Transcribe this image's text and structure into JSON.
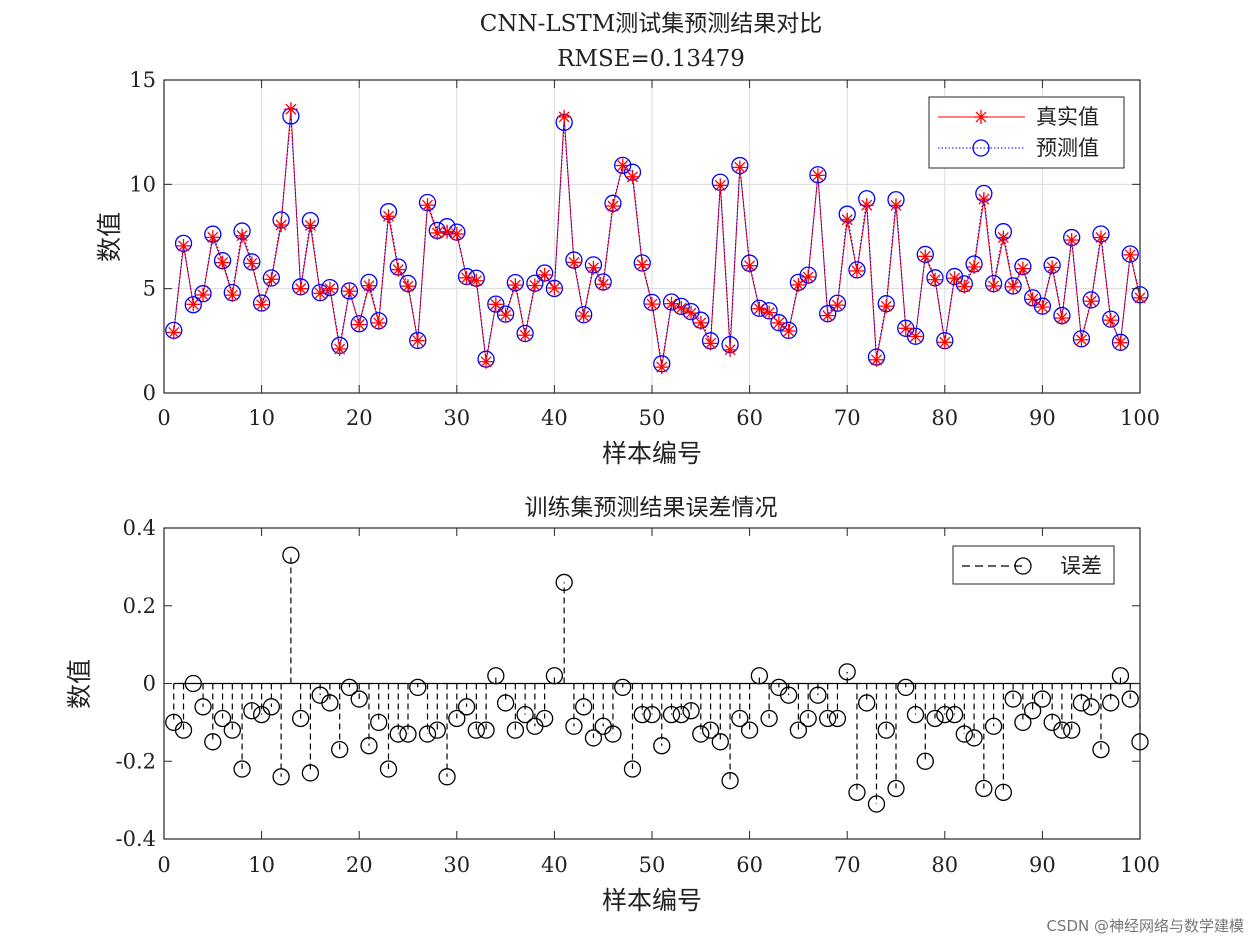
{
  "watermark": "CSDN @神经网络与数学建模",
  "chart_data": [
    {
      "type": "line",
      "title": "CNN-LSTM测试集预测结果对比",
      "subtitle": "RMSE=0.13479",
      "xlabel": "样本编号",
      "ylabel": "数值",
      "xlim": [
        0,
        100
      ],
      "ylim": [
        0,
        15
      ],
      "xticks": [
        0,
        10,
        20,
        30,
        40,
        50,
        60,
        70,
        80,
        90,
        100
      ],
      "yticks": [
        0,
        5,
        10,
        15
      ],
      "grid": true,
      "legend_position": "top-right",
      "series": [
        {
          "name": "真实值",
          "color": "#ff0000",
          "marker": "asterisk",
          "values": [
            2.9,
            7.05,
            4.25,
            4.7,
            7.46,
            6.25,
            4.69,
            7.54,
            6.21,
            4.23,
            5.45,
            8.05,
            13.6,
            5.0,
            8.03,
            4.78,
            5.0,
            2.11,
            4.88,
            3.28,
            5.14,
            3.36,
            8.47,
            5.91,
            5.12,
            2.51,
            9.0,
            7.67,
            7.73,
            7.62,
            5.52,
            5.38,
            1.5,
            4.25,
            3.73,
            5.17,
            2.77,
            5.15,
            5.66,
            5.03,
            13.23,
            6.26,
            3.69,
            6.0,
            5.21,
            8.96,
            10.9,
            10.36,
            6.15,
            4.26,
            1.24,
            4.28,
            4.07,
            3.83,
            3.36,
            2.38,
            9.95,
            2.07,
            10.81,
            6.1,
            4.04,
            3.85,
            3.36,
            2.97,
            5.18,
            5.56,
            10.43,
            3.71,
            4.21,
            8.3,
            5.85,
            9.0,
            1.59,
            4.16,
            8.99,
            3.1,
            2.71,
            6.55,
            5.43,
            2.43,
            5.5,
            5.1,
            6.04,
            9.29,
            5.13,
            7.45,
            5.09,
            5.96,
            4.49,
            4.12,
            6.02,
            3.59,
            7.33,
            2.55,
            4.4,
            7.45,
            3.49,
            2.41,
            6.62,
            4.56
          ]
        },
        {
          "name": "预测值",
          "color": "#0000ff",
          "marker": "circle",
          "values": [
            3.0,
            7.17,
            4.23,
            4.76,
            7.61,
            6.34,
            4.81,
            7.76,
            6.28,
            4.31,
            5.51,
            8.29,
            13.27,
            5.09,
            8.26,
            4.81,
            5.05,
            2.28,
            4.89,
            3.32,
            5.3,
            3.46,
            8.69,
            6.04,
            5.25,
            2.52,
            9.13,
            7.79,
            7.97,
            7.71,
            5.58,
            5.5,
            1.62,
            4.26,
            3.78,
            5.29,
            2.85,
            5.26,
            5.75,
            5.01,
            12.97,
            6.37,
            3.75,
            6.14,
            5.32,
            9.09,
            10.91,
            10.58,
            6.23,
            4.34,
            1.4,
            4.36,
            4.15,
            3.9,
            3.49,
            2.5,
            10.1,
            2.32,
            10.9,
            6.22,
            4.06,
            3.94,
            3.37,
            3.0,
            5.3,
            5.65,
            10.46,
            3.8,
            4.3,
            8.57,
            5.9,
            9.31,
            1.72,
            4.28,
            9.26,
            3.1,
            2.72,
            6.64,
            5.52,
            2.51,
            5.58,
            5.23,
            6.18,
            9.56,
            5.24,
            7.73,
            5.13,
            6.06,
            4.56,
            4.16,
            6.12,
            3.71,
            7.45,
            2.6,
            4.46,
            7.62,
            3.54,
            2.43,
            6.66,
            4.71
          ]
        }
      ]
    },
    {
      "type": "stem",
      "title": "训练集预测结果误差情况",
      "xlabel": "样本编号",
      "ylabel": "数值",
      "xlim": [
        0,
        100
      ],
      "ylim": [
        -0.4,
        0.4
      ],
      "xticks": [
        0,
        10,
        20,
        30,
        40,
        50,
        60,
        70,
        80,
        90,
        100
      ],
      "yticks": [
        -0.4,
        -0.2,
        0,
        0.2,
        0.4
      ],
      "yticklabels": [
        "-0.4",
        "-0.2",
        "0",
        "0.2",
        "0.4"
      ],
      "grid": false,
      "legend_position": "top-right",
      "series": [
        {
          "name": "误差",
          "color": "#000000",
          "marker": "circle",
          "values": [
            -0.1,
            -0.12,
            0.0,
            -0.06,
            -0.15,
            -0.09,
            -0.12,
            -0.22,
            -0.07,
            -0.08,
            -0.06,
            -0.24,
            0.33,
            -0.09,
            -0.23,
            -0.03,
            -0.05,
            -0.17,
            -0.01,
            -0.04,
            -0.16,
            -0.1,
            -0.22,
            -0.13,
            -0.13,
            -0.01,
            -0.13,
            -0.12,
            -0.24,
            -0.09,
            -0.06,
            -0.12,
            -0.12,
            0.02,
            -0.05,
            -0.12,
            -0.08,
            -0.11,
            -0.09,
            0.02,
            0.26,
            -0.11,
            -0.06,
            -0.14,
            -0.11,
            -0.13,
            -0.01,
            -0.22,
            -0.08,
            -0.08,
            -0.16,
            -0.08,
            -0.08,
            -0.07,
            -0.13,
            -0.12,
            -0.15,
            -0.25,
            -0.09,
            -0.12,
            0.02,
            -0.09,
            -0.01,
            -0.03,
            -0.12,
            -0.09,
            -0.03,
            -0.09,
            -0.09,
            0.03,
            -0.28,
            -0.05,
            -0.31,
            -0.12,
            -0.27,
            -0.01,
            -0.08,
            -0.2,
            -0.09,
            -0.08,
            -0.08,
            -0.13,
            -0.14,
            -0.27,
            -0.11,
            -0.28,
            -0.04,
            -0.1,
            -0.07,
            -0.04,
            -0.1,
            -0.12,
            -0.12,
            -0.05,
            -0.06,
            -0.17,
            -0.05,
            0.02,
            -0.04,
            -0.15
          ]
        }
      ]
    }
  ]
}
